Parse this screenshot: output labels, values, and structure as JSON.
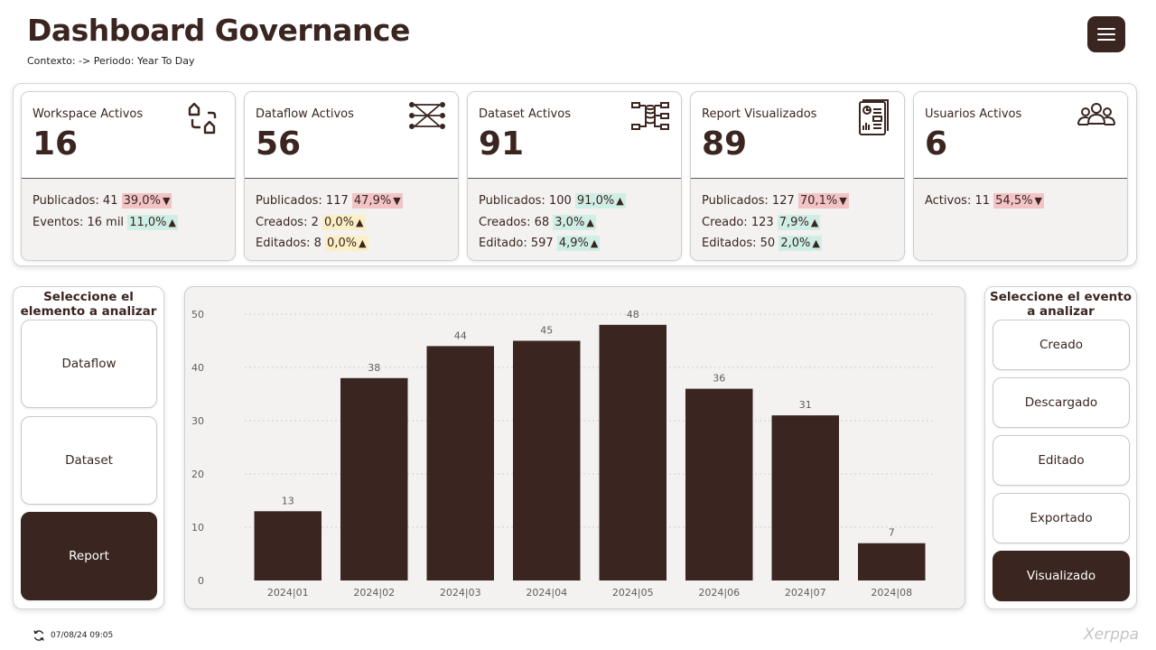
{
  "header": {
    "title": "Dashboard Governance",
    "subtitle": "Contexto: -> Periodo: Year To Day"
  },
  "kpis": [
    {
      "label": "Workspace Activos",
      "value": "16",
      "icon": "workspace-icon",
      "rows": [
        {
          "label": "Publicados: 41",
          "pct": "39,0%",
          "color": "red",
          "arrow": "▼"
        },
        {
          "label": "Eventos: 16 mil",
          "pct": "11,0%",
          "color": "green",
          "arrow": "▲"
        }
      ]
    },
    {
      "label": "Dataflow Activos",
      "value": "56",
      "icon": "dataflow-icon",
      "rows": [
        {
          "label": "Publicados: 117",
          "pct": "47,9%",
          "color": "red",
          "arrow": "▼"
        },
        {
          "label": "Creados: 2",
          "pct": "0,0%",
          "color": "yellow",
          "arrow": "▲"
        },
        {
          "label": "Editados: 8",
          "pct": "0,0%",
          "color": "yellow",
          "arrow": "▲"
        }
      ]
    },
    {
      "label": "Dataset Activos",
      "value": "91",
      "icon": "dataset-icon",
      "rows": [
        {
          "label": "Publicados: 100",
          "pct": "91,0%",
          "color": "green",
          "arrow": "▲"
        },
        {
          "label": "Creados: 68",
          "pct": "3,0%",
          "color": "green",
          "arrow": "▲"
        },
        {
          "label": "Editado: 597",
          "pct": "4,9%",
          "color": "green",
          "arrow": "▲"
        }
      ]
    },
    {
      "label": "Report Visualizados",
      "value": "89",
      "icon": "report-icon",
      "rows": [
        {
          "label": "Publicados: 127",
          "pct": "70,1%",
          "color": "red",
          "arrow": "▼"
        },
        {
          "label": "Creado: 123",
          "pct": "7,9%",
          "color": "green",
          "arrow": "▲"
        },
        {
          "label": "Editados: 50",
          "pct": "2,0%",
          "color": "green",
          "arrow": "▲"
        }
      ]
    },
    {
      "label": "Usuarios Activos",
      "value": "6",
      "icon": "users-icon",
      "rows": [
        {
          "label": "Activos: 11",
          "pct": "54,5%",
          "color": "red",
          "arrow": "▼"
        }
      ]
    }
  ],
  "element_selector": {
    "title": "Seleccione el elemento a analizar",
    "options": [
      "Dataflow",
      "Dataset",
      "Report"
    ],
    "selected": "Report"
  },
  "event_selector": {
    "title": "Seleccione el evento a analizar",
    "options": [
      "Creado",
      "Descargado",
      "Editado",
      "Exportado",
      "Visualizado"
    ],
    "selected": "Visualizado"
  },
  "chart_data": {
    "type": "bar",
    "categories": [
      "2024|01",
      "2024|02",
      "2024|03",
      "2024|04",
      "2024|05",
      "2024|06",
      "2024|07",
      "2024|08"
    ],
    "values": [
      13,
      38,
      44,
      45,
      48,
      36,
      31,
      7
    ],
    "yticks": [
      0,
      10,
      20,
      30,
      40,
      50
    ],
    "ylim": [
      0,
      50
    ],
    "grid": true,
    "bar_color": "#3a2520"
  },
  "footer": {
    "timestamp": "07/08/24 09:05",
    "brand": "Xerppa"
  },
  "colors": {
    "brand": "#3a2520",
    "red": "#f2c4c6",
    "yellow": "#fbefc6",
    "green": "#cfeee6"
  }
}
